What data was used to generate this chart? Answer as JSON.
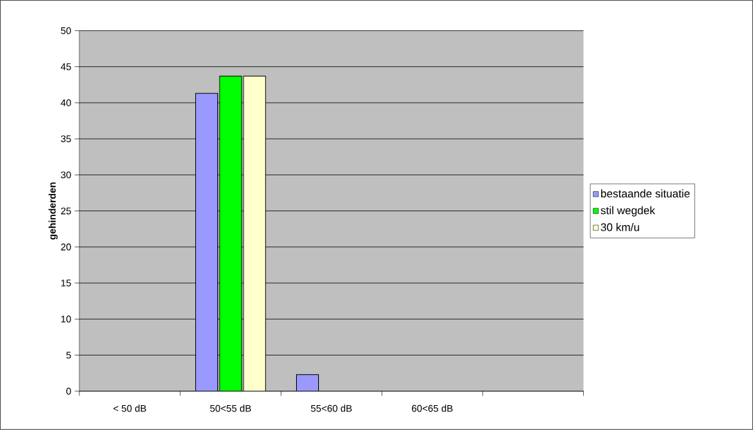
{
  "chart_data": {
    "type": "bar",
    "ylabel": "gehinderden",
    "categories": [
      "< 50 dB",
      "50<55 dB",
      "55<60 dB",
      "60<65 dB",
      null
    ],
    "series": [
      {
        "name": "bestaande situatie",
        "color": "#9999ff",
        "values": [
          null,
          41.3,
          2.3,
          null,
          null
        ]
      },
      {
        "name": "stil wegdek",
        "color": "#00ff00",
        "values": [
          null,
          43.7,
          null,
          null,
          null
        ]
      },
      {
        "name": "30 km/u",
        "color": "#ffffcc",
        "values": [
          null,
          43.7,
          null,
          null,
          null
        ]
      }
    ],
    "ylim": [
      0,
      50
    ],
    "yticks": [
      0,
      5,
      10,
      15,
      20,
      25,
      30,
      35,
      40,
      45,
      50
    ],
    "grid": "y",
    "legend": "right"
  }
}
